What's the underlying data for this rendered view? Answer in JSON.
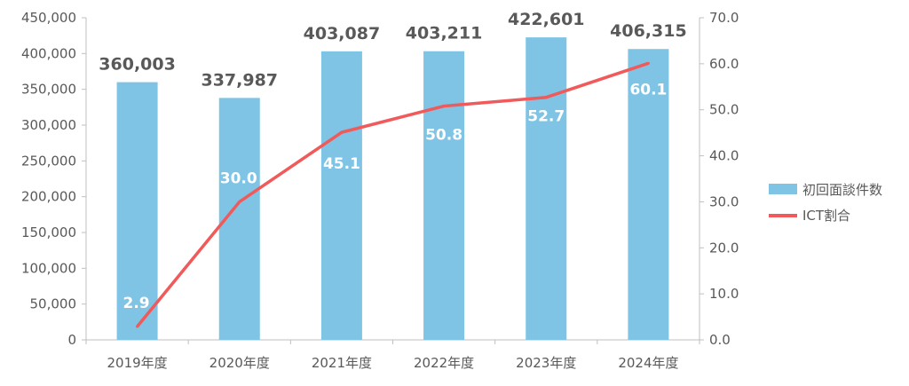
{
  "chart_data": {
    "type": "bar",
    "categories": [
      "2019年度",
      "2020年度",
      "2021年度",
      "2022年度",
      "2023年度",
      "2024年度"
    ],
    "series": [
      {
        "name": "初回面談件数",
        "type": "bar",
        "axis": "left",
        "color": "#7fc4e4",
        "values": [
          360003,
          337987,
          403087,
          403211,
          422601,
          406315
        ],
        "labels": [
          "360,003",
          "337,987",
          "403,087",
          "403,211",
          "422,601",
          "406,315"
        ]
      },
      {
        "name": "ICT割合",
        "type": "line",
        "axis": "right",
        "color": "#f05a5a",
        "values": [
          2.9,
          30.0,
          45.1,
          50.8,
          52.7,
          60.1
        ],
        "labels": [
          "2.9",
          "30.0",
          "45.1",
          "50.8",
          "52.7",
          "60.1"
        ]
      }
    ],
    "y_left": {
      "ylim": [
        0,
        450000
      ],
      "ticks": [
        "0",
        "50,000",
        "100,000",
        "150,000",
        "200,000",
        "250,000",
        "300,000",
        "350,000",
        "400,000",
        "450,000"
      ]
    },
    "y_right": {
      "ylim": [
        0,
        70
      ],
      "ticks": [
        "0.0",
        "10.0",
        "20.0",
        "30.0",
        "40.0",
        "50.0",
        "60.0",
        "70.0"
      ]
    },
    "title": "",
    "xlabel": "",
    "ylabel": "",
    "grid": false,
    "legend": "right"
  }
}
